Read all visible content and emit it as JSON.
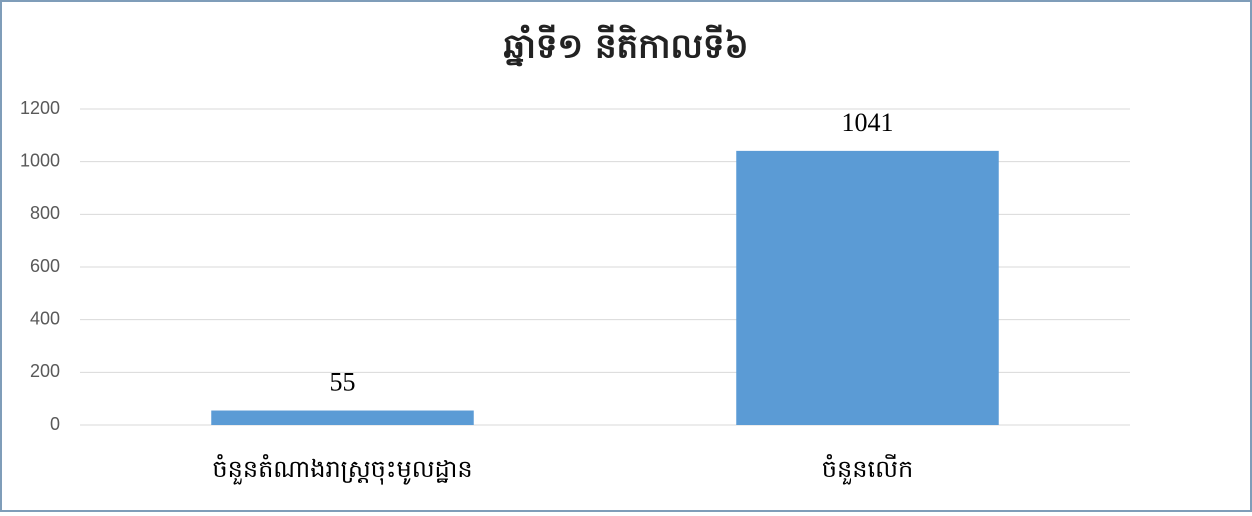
{
  "chart_data": {
    "type": "bar",
    "title": "ឆ្នាំទី១ នីតិកាលទី៦",
    "categories": [
      "ចំនួនតំណាងរាស្ត្រចុះមូលដ្ឋាន",
      "ចំនួនលើក"
    ],
    "values": [
      55,
      1041
    ],
    "color": "#5b9bd5",
    "ylim": [
      0,
      1200
    ],
    "yticks": [
      0,
      200,
      400,
      600,
      800,
      1000,
      1200
    ],
    "grid": true
  }
}
